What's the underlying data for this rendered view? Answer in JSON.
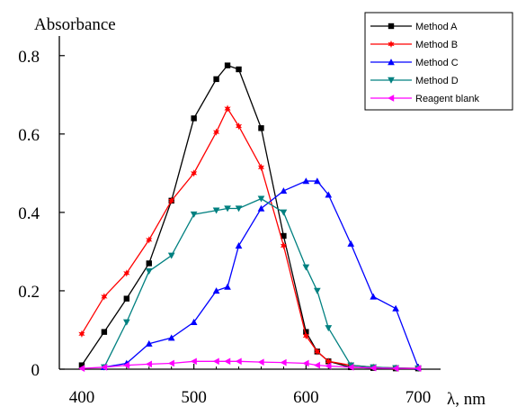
{
  "chart_data": {
    "type": "line",
    "title": "",
    "xlabel": "λ, nm",
    "ylabel": "Absorbance",
    "xlim": [
      380,
      720
    ],
    "ylim": [
      0,
      0.85
    ],
    "x_ticks": [
      400,
      500,
      600,
      700
    ],
    "y_ticks": [
      0,
      0.2,
      0.4,
      0.6,
      0.8
    ],
    "x_tick_labels": [
      "400",
      "500",
      "600",
      "700"
    ],
    "y_tick_labels": [
      "0",
      "0.2",
      "0.4",
      "0.6",
      "0.8"
    ],
    "grid": false,
    "legend_position": "top-right",
    "series": [
      {
        "name": "Method A",
        "color": "#000000",
        "marker": "square",
        "points": [
          [
            400,
            0.01
          ],
          [
            420,
            0.095
          ],
          [
            440,
            0.18
          ],
          [
            460,
            0.27
          ],
          [
            480,
            0.43
          ],
          [
            500,
            0.64
          ],
          [
            520,
            0.74
          ],
          [
            530,
            0.775
          ],
          [
            540,
            0.765
          ],
          [
            560,
            0.615
          ],
          [
            580,
            0.34
          ],
          [
            600,
            0.095
          ],
          [
            610,
            0.045
          ],
          [
            620,
            0.02
          ],
          [
            640,
            0.005
          ],
          [
            660,
            0.003
          ],
          [
            680,
            0.002
          ],
          [
            700,
            0.002
          ]
        ]
      },
      {
        "name": "Method B",
        "color": "#ff0000",
        "marker": "star",
        "points": [
          [
            400,
            0.09
          ],
          [
            420,
            0.185
          ],
          [
            440,
            0.245
          ],
          [
            460,
            0.33
          ],
          [
            480,
            0.43
          ],
          [
            500,
            0.5
          ],
          [
            520,
            0.605
          ],
          [
            530,
            0.665
          ],
          [
            540,
            0.62
          ],
          [
            560,
            0.515
          ],
          [
            580,
            0.315
          ],
          [
            600,
            0.085
          ],
          [
            610,
            0.045
          ],
          [
            620,
            0.02
          ],
          [
            640,
            0.01
          ],
          [
            660,
            0.005
          ],
          [
            680,
            0.003
          ],
          [
            700,
            0.002
          ]
        ]
      },
      {
        "name": "Method C",
        "color": "#0000ff",
        "marker": "triangle-up",
        "points": [
          [
            420,
            0.005
          ],
          [
            440,
            0.015
          ],
          [
            460,
            0.065
          ],
          [
            480,
            0.08
          ],
          [
            500,
            0.12
          ],
          [
            520,
            0.2
          ],
          [
            530,
            0.21
          ],
          [
            540,
            0.315
          ],
          [
            560,
            0.41
          ],
          [
            580,
            0.455
          ],
          [
            600,
            0.48
          ],
          [
            610,
            0.48
          ],
          [
            620,
            0.445
          ],
          [
            640,
            0.32
          ],
          [
            660,
            0.185
          ],
          [
            680,
            0.155
          ],
          [
            700,
            0.005
          ]
        ]
      },
      {
        "name": "Method D",
        "color": "#008080",
        "marker": "triangle-down",
        "points": [
          [
            420,
            0.005
          ],
          [
            440,
            0.12
          ],
          [
            460,
            0.25
          ],
          [
            480,
            0.29
          ],
          [
            500,
            0.395
          ],
          [
            520,
            0.405
          ],
          [
            530,
            0.41
          ],
          [
            540,
            0.41
          ],
          [
            560,
            0.435
          ],
          [
            580,
            0.4
          ],
          [
            600,
            0.26
          ],
          [
            610,
            0.2
          ],
          [
            620,
            0.105
          ],
          [
            640,
            0.01
          ],
          [
            660,
            0.005
          ],
          [
            680,
            0.003
          ],
          [
            700,
            0.002
          ]
        ]
      },
      {
        "name": "Reagent blank",
        "color": "#ff00ff",
        "marker": "triangle-left",
        "points": [
          [
            400,
            0.002
          ],
          [
            420,
            0.005
          ],
          [
            440,
            0.01
          ],
          [
            460,
            0.013
          ],
          [
            480,
            0.015
          ],
          [
            500,
            0.02
          ],
          [
            520,
            0.02
          ],
          [
            530,
            0.02
          ],
          [
            540,
            0.02
          ],
          [
            560,
            0.018
          ],
          [
            580,
            0.017
          ],
          [
            600,
            0.015
          ],
          [
            610,
            0.01
          ],
          [
            620,
            0.008
          ],
          [
            640,
            0.005
          ],
          [
            660,
            0.003
          ],
          [
            680,
            0.002
          ],
          [
            700,
            0.002
          ]
        ]
      }
    ]
  }
}
